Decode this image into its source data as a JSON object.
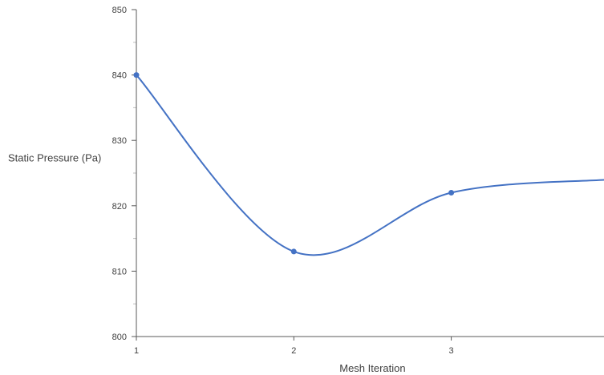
{
  "chart_data": {
    "type": "line",
    "title": "",
    "xlabel": "Mesh Iteration",
    "ylabel": "Static Pressure (Pa)",
    "x": [
      1,
      2,
      3,
      4
    ],
    "xticks": [
      "1",
      "2",
      "3"
    ],
    "yticks": [
      "800",
      "810",
      "820",
      "830",
      "840",
      "850"
    ],
    "ylim": [
      800,
      850
    ],
    "xlim": [
      1,
      3.97
    ],
    "series": [
      {
        "values": [
          840,
          813,
          822,
          824
        ],
        "markers_shown": [
          true,
          true,
          true,
          false
        ],
        "smooth": true,
        "color": "#4472c4"
      }
    ],
    "grid": false,
    "legend": "none",
    "axis_color": "#595959",
    "minor_tick_color": "#bfbfbf"
  }
}
